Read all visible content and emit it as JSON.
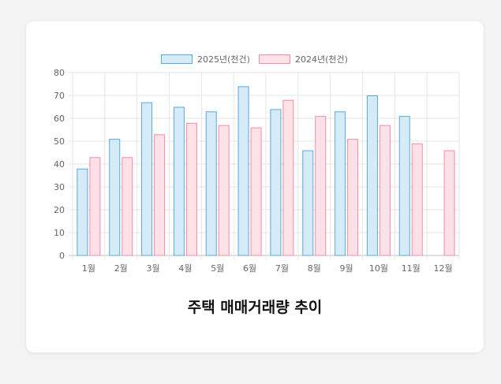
{
  "chart_data": {
    "type": "bar",
    "title": "주택 매매거래량 추이",
    "categories": [
      "1월",
      "2월",
      "3월",
      "4월",
      "5월",
      "6월",
      "7월",
      "8월",
      "9월",
      "10월",
      "11월",
      "12월"
    ],
    "series": [
      {
        "name": "2025년(천건)",
        "values": [
          38,
          51,
          67,
          65,
          63,
          74,
          64,
          46,
          63,
          70,
          61,
          null
        ],
        "fill": "#d6ebf8",
        "stroke": "#5aa9dc"
      },
      {
        "name": "2024년(천건)",
        "values": [
          43,
          43,
          53,
          58,
          57,
          56,
          68,
          61,
          51,
          57,
          49,
          46
        ],
        "fill": "#fde1e6",
        "stroke": "#ee8fa4"
      }
    ],
    "ylim": [
      0,
      80
    ],
    "yticks": [
      0,
      10,
      20,
      30,
      40,
      50,
      60,
      70,
      80
    ],
    "grid": true,
    "legend": "top-center"
  }
}
